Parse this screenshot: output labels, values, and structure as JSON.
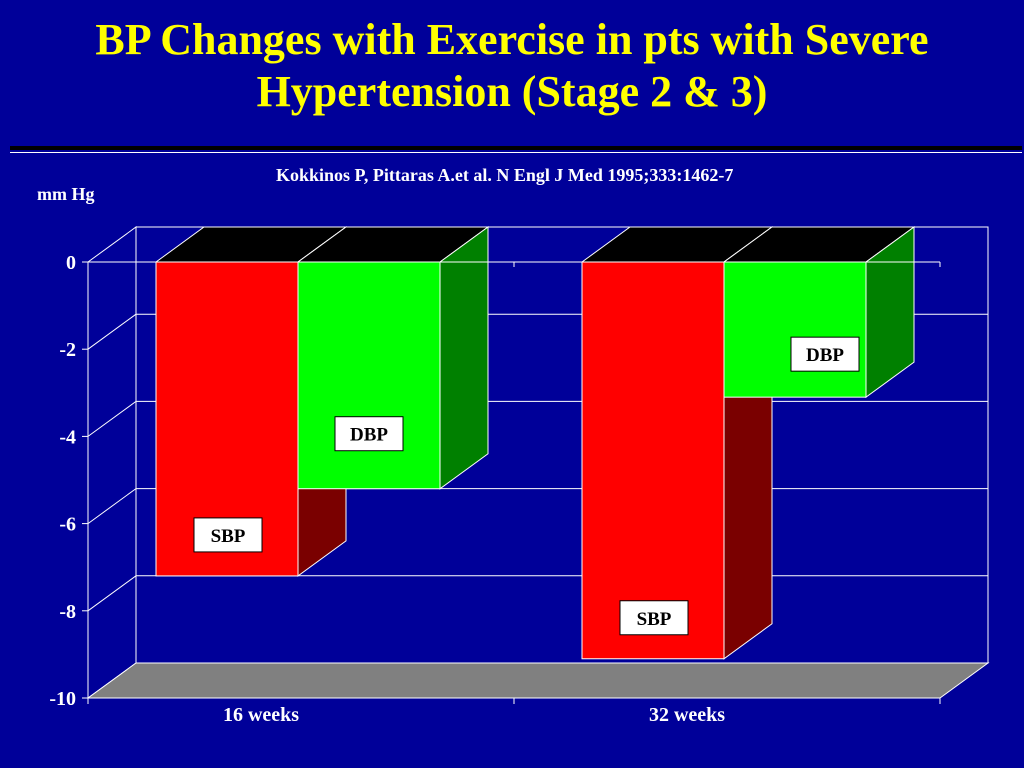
{
  "slide": {
    "title_line1": "BP Changes with Exercise in pts with Severe",
    "title_line2": "Hypertension (Stage 2 & 3)",
    "citation": "Kokkinos P, Pittaras A.et al.  N Engl J Med 1995;333:1462-7"
  },
  "chart_data": {
    "type": "bar",
    "three_d": true,
    "ylabel": "mm Hg",
    "categories": [
      "16 weeks",
      "32 weeks"
    ],
    "series": [
      {
        "name": "SBP",
        "values": [
          -7.2,
          -9.1
        ],
        "color": "#ff0000",
        "side_color": "#7a0000"
      },
      {
        "name": "DBP",
        "values": [
          -5.2,
          -3.1
        ],
        "color": "#00ff00",
        "side_color": "#008000"
      }
    ],
    "ylim": [
      -10,
      0
    ],
    "yticks": [
      "0",
      "-2",
      "-4",
      "-6",
      "-8",
      "-10"
    ],
    "grid": true,
    "colors": {
      "background": "#000099",
      "title": "#ffff00",
      "text": "#ffffff",
      "floor": "#808080",
      "bar_top": "#000000",
      "label_box": "#ffffff"
    }
  }
}
